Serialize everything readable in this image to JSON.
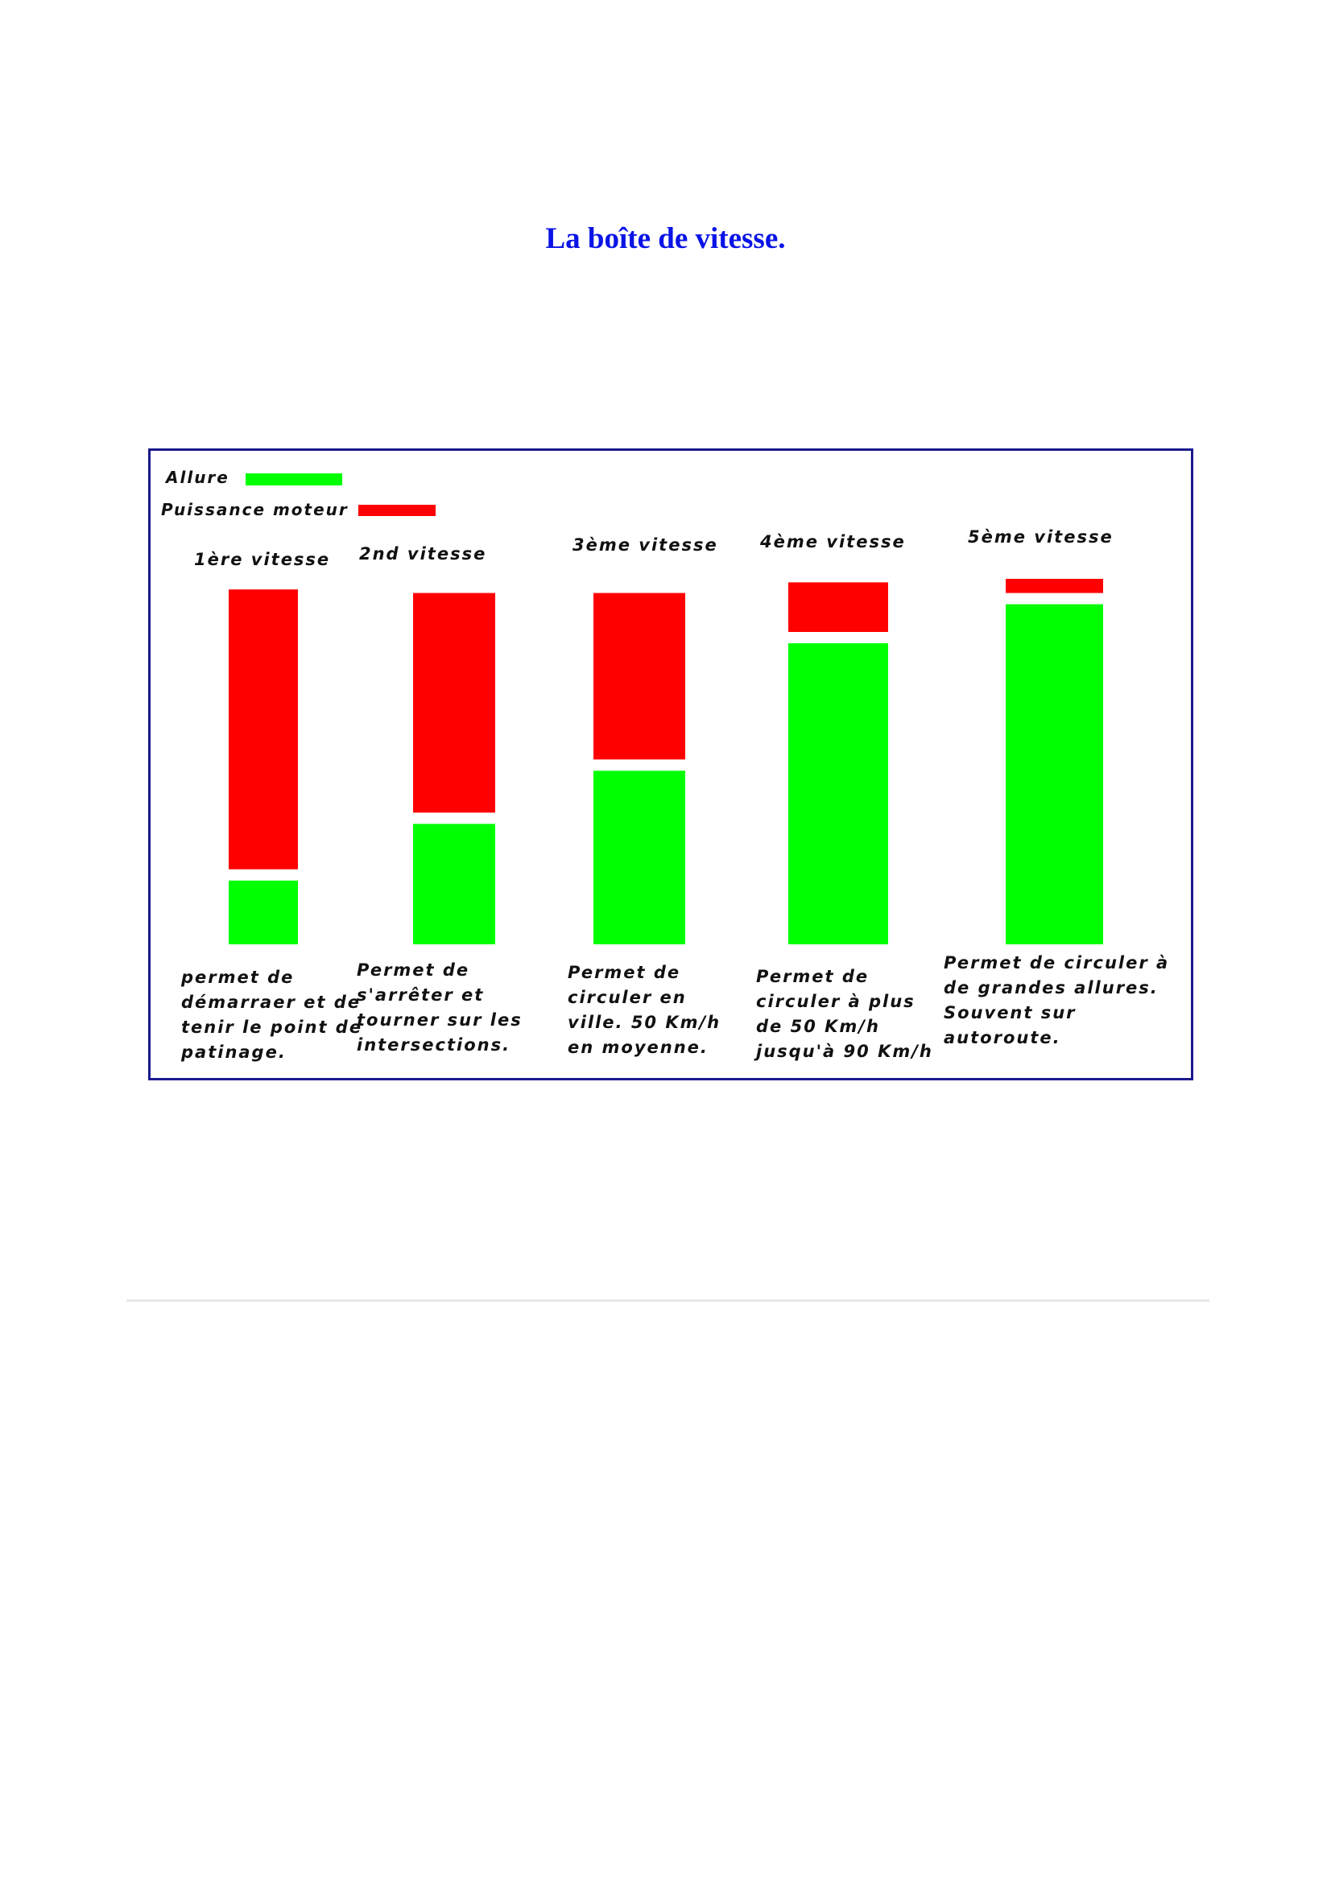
{
  "page": {
    "title": "La boîte de vitesse."
  },
  "chart_data": {
    "type": "bar",
    "stacked": true,
    "colors": {
      "allure": "#00ff00",
      "puissance": "#ff0000",
      "title": "#0a14e6",
      "frame": "#1a1a8c"
    },
    "legend": [
      {
        "name": "Allure",
        "color": "#00ff00"
      },
      {
        "name": "Puissance moteur",
        "color": "#ff0000"
      }
    ],
    "categories": [
      "1ère vitesse",
      "2nd vitesse",
      "3ème vitesse",
      "4ème vitesse",
      "5ème vitesse"
    ],
    "series": [
      {
        "name": "Allure",
        "values": [
          18,
          34,
          49,
          85,
          96
        ]
      },
      {
        "name": "Puissance moteur",
        "values": [
          79,
          62,
          47,
          14,
          4
        ]
      }
    ],
    "ylim": [
      0,
      100
    ],
    "descriptions": [
      [
        "permet de",
        "démarraer et de",
        "tenir le point de",
        "patinage."
      ],
      [
        "Permet de",
        "s'arrêter et",
        "tourner sur les",
        "intersections."
      ],
      [
        "Permet de",
        "circuler en",
        "ville. 50 Km/h",
        "en moyenne."
      ],
      [
        "Permet de",
        "circuler à plus",
        "de 50 Km/h",
        "jusqu'à 90 Km/h"
      ],
      [
        "Permet de circuler à",
        "de grandes allures.",
        "Souvent sur",
        "autoroute."
      ]
    ]
  }
}
